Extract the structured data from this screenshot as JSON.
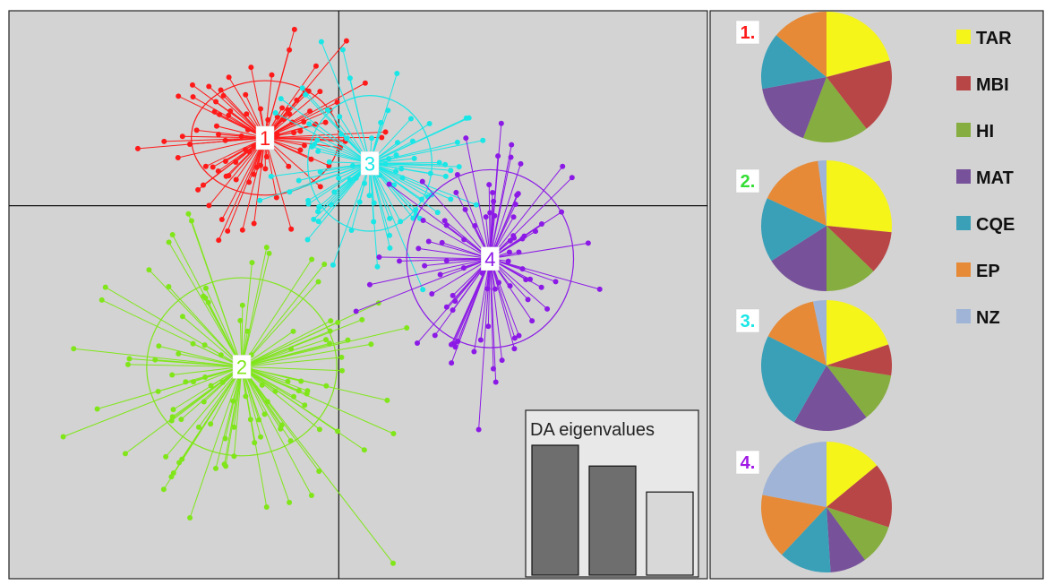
{
  "chart_data": [
    {
      "type": "scatter",
      "clusters": [
        {
          "label": "1",
          "color": "#ff1a1a",
          "center": [
            -1.9,
            1.6
          ],
          "ellipse": [
            1.9,
            1.35
          ],
          "spread": [
            1.3,
            1.0
          ],
          "count": 95,
          "seed": 11
        },
        {
          "label": "2",
          "color": "#80e61a",
          "center": [
            -2.5,
            -3.8
          ],
          "ellipse": [
            2.45,
            2.1
          ],
          "spread": [
            1.7,
            1.5
          ],
          "count": 110,
          "seed": 23
        },
        {
          "label": "3",
          "color": "#1ae6e6",
          "center": [
            0.8,
            1.0
          ],
          "ellipse": [
            1.6,
            1.6
          ],
          "spread": [
            1.2,
            1.1
          ],
          "count": 85,
          "seed": 37
        },
        {
          "label": "4",
          "color": "#8c1ae6",
          "center": [
            3.9,
            -1.25
          ],
          "ellipse": [
            2.15,
            2.1
          ],
          "spread": [
            1.3,
            1.3
          ],
          "count": 90,
          "seed": 53
        }
      ],
      "xlim": [
        -8.5,
        9.5
      ],
      "ylim": [
        -8.8,
        4.6
      ],
      "axis_lines": {
        "x": 0,
        "y": 0
      }
    },
    {
      "type": "bar",
      "title": "DA eigenvalues",
      "values": [
        100,
        84,
        64
      ],
      "colors": [
        "#6e6e6e",
        "#6e6e6e",
        "#d8d8d8"
      ]
    },
    {
      "type": "pie",
      "legend": [
        {
          "label": "TAR",
          "color": "#f5f51a"
        },
        {
          "label": "MBI",
          "color": "#b94646"
        },
        {
          "label": "HI",
          "color": "#86ad3f"
        },
        {
          "label": "MAT",
          "color": "#775199"
        },
        {
          "label": "CQE",
          "color": "#3aa0b8"
        },
        {
          "label": "EP",
          "color": "#e68a37"
        },
        {
          "label": "NZ",
          "color": "#9fb4d6"
        }
      ],
      "pies": [
        {
          "label": "1.",
          "label_color": "#ff1a1a",
          "values": [
            18,
            16,
            14,
            14,
            12,
            12,
            0
          ]
        },
        {
          "label": "2.",
          "label_color": "#33dd33",
          "values": [
            25,
            10,
            12,
            15,
            15,
            15,
            2
          ]
        },
        {
          "label": "3.",
          "label_color": "#1ae6e6",
          "values": [
            18,
            7,
            11,
            17,
            22,
            13,
            3
          ]
        },
        {
          "label": "4.",
          "label_color": "#a01ae6",
          "values": [
            14,
            16,
            10,
            9,
            13,
            16,
            22
          ]
        }
      ]
    }
  ]
}
